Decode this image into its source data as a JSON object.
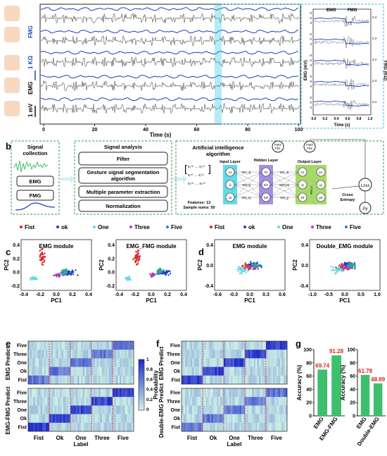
{
  "panel_a": {
    "letter": "a",
    "xlabel": "Time (s)",
    "xticks": [
      "0",
      "20",
      "40",
      "60",
      "80",
      "100"
    ],
    "side_labels": {
      "fmg": "FMG",
      "res": "1 KΩ",
      "emg": "EMG",
      "volt": "1 mV"
    },
    "inset": {
      "legend_emg": "EMG",
      "legend_fmg": "FMG",
      "ylabel_left": "EMG (mV)",
      "ylabel_right": "FMG (KΩ)",
      "xlabel": "Time (s)",
      "xticks": [
        "0.0",
        "0.2",
        "0.4",
        "0.6",
        "0.8",
        "1.0"
      ],
      "left_ticks": [
        "-3",
        "0",
        "3"
      ],
      "right_ticks": [
        "2.6",
        "2.4",
        "2.2",
        "2.0"
      ]
    }
  },
  "panel_b": {
    "letter": "b",
    "signal_collection": "Signal collection",
    "emg": "EMG",
    "fmg": "FMG",
    "signal_analysis": "Signal analysis",
    "steps": [
      "Filter",
      "Gesture signal segmentation algorithm",
      "Multiple parameter extraction",
      "Normalization"
    ],
    "ai_title": "Artificial intelligence algorithm",
    "input_layer": "Input Layer",
    "hidden_layer": "Hidden Layer",
    "output_layer": "Output Layer",
    "fw1": "FW1",
    "fb1": "Fb1",
    "fw2": "FW2",
    "fb2": "Fb2",
    "features": "Features: 13",
    "samples": "Sample nums: 50",
    "weights_in": [
      "W1_1j",
      "W1_ij",
      "W1_nj"
    ],
    "weights_out": [
      "W1_1j",
      "W2_mj",
      "W2_jj"
    ],
    "hidden_nodes": [
      "h1",
      "hm",
      "hM"
    ],
    "in_nodes": [
      "x1",
      "xi",
      "xn"
    ],
    "relu_nodes": [
      "z1",
      "zj",
      "zK"
    ],
    "out_nodes": [
      "p1",
      "pj",
      "pK"
    ],
    "relu": "ReLU",
    "cross_entropy": "Cross Entropy",
    "loss": "Loss",
    "py": "Py"
  },
  "legend": [
    "Fist",
    "ok",
    "One",
    "Three",
    "Five"
  ],
  "colors": {
    "fist": "#d62728",
    "ok": "#1f3fbf",
    "one": "#63d9e6",
    "three": "#b23ab8",
    "five": "#2a7fd0",
    "green": "#3fbf6e",
    "dash_green": "#2e9e4f",
    "cyan": "#29c6e0"
  },
  "panel_c": {
    "letter": "c",
    "titles": [
      "EMG module",
      "EMG_FMG module"
    ],
    "xlabel": "PC1",
    "ylabel": "PC2",
    "xticks": [
      "-0.4",
      "-0.2",
      "0.0",
      "0.2",
      "0.4"
    ],
    "yticks": [
      "-0.2",
      "0.0",
      "0.2",
      "0.4"
    ]
  },
  "panel_d": {
    "letter": "d",
    "titles": [
      "EMG module",
      "Double_EMG module"
    ],
    "xlabel": "PC1",
    "ylabel": "PC2",
    "xticks_left": [
      "-0.6",
      "-0.3",
      "0.0",
      "0.3",
      "0.6"
    ],
    "xticks_right": [
      "-1.0",
      "-0.5",
      "0.0",
      "0.5",
      "1.0"
    ],
    "yticks": [
      "-0.4",
      "0.0",
      "0.4"
    ]
  },
  "panel_e": {
    "letter": "e",
    "ylabel_top": "EMG Predict",
    "ylabel_bottom": "EMG-FMG Predict",
    "rows": [
      "Five",
      "Three",
      "One",
      "Ok",
      "Fist"
    ],
    "cols": [
      "Fist",
      "Ok",
      "One",
      "Three",
      "Five"
    ],
    "xlabel": "Label",
    "colorbar_label": "Probability",
    "colorbar_ticks": [
      "1",
      "0.8",
      "0.6",
      "0.4",
      "0.2",
      "0"
    ]
  },
  "panel_f": {
    "letter": "f",
    "ylabel_top": "EMG Predict",
    "ylabel_bottom": "Double-EMG Predict",
    "rows": [
      "Five",
      "Three",
      "One",
      "Ok",
      "Fist"
    ],
    "cols": [
      "Fist",
      "Ok",
      "One",
      "Three",
      "Five"
    ],
    "xlabel": "Label"
  },
  "panel_g": {
    "letter": "g",
    "ylabel": "Accuracy (%)",
    "yticks": [
      "0",
      "20",
      "40",
      "60",
      "80",
      "100"
    ],
    "left": {
      "categories": [
        "EMG",
        "EMG-FMG"
      ],
      "values": [
        69.74,
        91.28
      ],
      "labels": [
        "69.74",
        "91.28"
      ]
    },
    "right": {
      "categories": [
        "EMG",
        "Double-EMG"
      ],
      "values": [
        61.78,
        48.89
      ],
      "labels": [
        "61.78",
        "48.89"
      ]
    }
  },
  "chart_data": [
    {
      "type": "bar",
      "categories": [
        "EMG",
        "EMG-FMG"
      ],
      "values": [
        69.74,
        91.28
      ],
      "ylabel": "Accuracy (%)",
      "ylim": [
        0,
        100
      ]
    },
    {
      "type": "bar",
      "categories": [
        "EMG",
        "Double-EMG"
      ],
      "values": [
        61.78,
        48.89
      ],
      "ylabel": "Accuracy (%)",
      "ylim": [
        0,
        100
      ]
    }
  ]
}
